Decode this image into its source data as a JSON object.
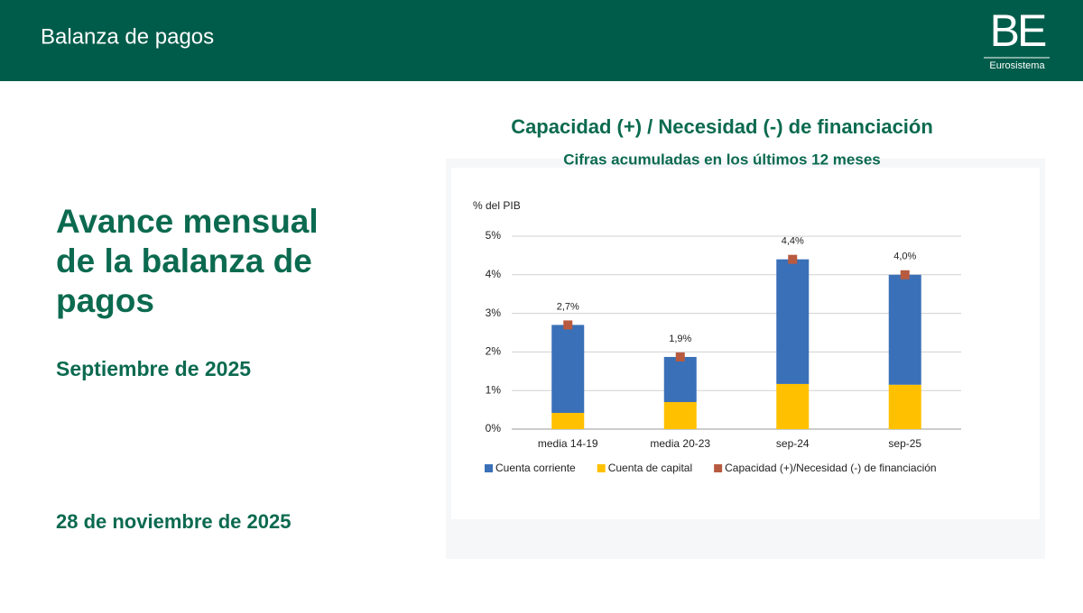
{
  "header": {
    "title": "Balanza de pagos",
    "logo": "BE",
    "logo_sub": "Eurosistema"
  },
  "slide": {
    "title": "Avance mensual de la balanza de pagos",
    "subtitle": "Septiembre de 2025",
    "date": "28 de noviembre de 2025"
  },
  "chart_data": {
    "type": "stacked_bar",
    "title": "Capacidad (+) / Necesidad (-) de financiación",
    "subtitle": "Cifras acumuladas en los últimos 12 meses",
    "y_label": "% del PIB",
    "categories": [
      "media 14-19",
      "media 20-23",
      "sep-24",
      "sep-25"
    ],
    "series": [
      {
        "name": "Cuenta corriente",
        "type": "bar",
        "color": "#3a70b7",
        "values": [
          2.28,
          1.17,
          3.23,
          2.85
        ]
      },
      {
        "name": "Cuenta de capital",
        "type": "bar",
        "color": "#ffc000",
        "values": [
          0.42,
          0.7,
          1.17,
          1.15
        ]
      },
      {
        "name": "Capacidad (+)/Necesidad (-) de financiación",
        "type": "scatter",
        "color": "#b85a40",
        "values": [
          2.7,
          1.87,
          4.4,
          4.0
        ],
        "value_labels": [
          "2,7%",
          "1,9%",
          "4,4%",
          "4,0%"
        ]
      }
    ],
    "ylim": [
      0,
      5
    ],
    "yticks": [
      {
        "value": 0,
        "label": "0%"
      },
      {
        "value": 1,
        "label": "1%"
      },
      {
        "value": 2,
        "label": "2%"
      },
      {
        "value": 3,
        "label": "3%"
      },
      {
        "value": 4,
        "label": "4%"
      },
      {
        "value": 5,
        "label": "5%"
      }
    ],
    "grid": true,
    "legend": "bottom"
  }
}
